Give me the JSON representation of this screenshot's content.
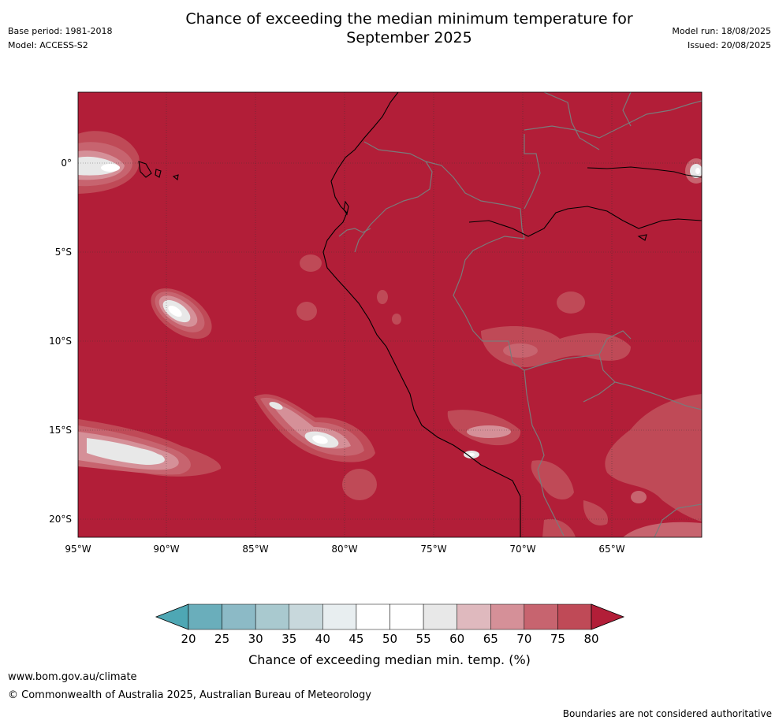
{
  "header": {
    "title_line1": "Chance of exceeding the median minimum temperature for",
    "title_line2": "September 2025",
    "base_period": "Base period: 1981-2018",
    "model": "Model: ACCESS-S2",
    "model_run": "Model run: 18/08/2025",
    "issued": "Issued: 20/08/2025"
  },
  "map": {
    "lon_labels": [
      "95°W",
      "90°W",
      "85°W",
      "80°W",
      "75°W",
      "70°W",
      "65°W"
    ],
    "lat_labels": [
      "0°",
      "5°S",
      "10°S",
      "15°S",
      "20°S"
    ],
    "background_color": "#b21e38",
    "land_border_color": "#7a7a7a",
    "coastline_color": "#000000"
  },
  "colorbar": {
    "label": "Chance of exceeding median min. temp. (%)",
    "ticks": [
      "20",
      "25",
      "30",
      "35",
      "40",
      "45",
      "50",
      "55",
      "60",
      "65",
      "70",
      "75",
      "80"
    ],
    "colors": [
      "#6aaebb",
      "#8cbac6",
      "#a9c9cf",
      "#c8d8dc",
      "#e8eef0",
      "#ffffff",
      "#ffffff",
      "#e8e8e8",
      "#dfb9be",
      "#d59098",
      "#c7646f",
      "#bf4a57"
    ],
    "under_color": "#4ea7b4",
    "over_color": "#b21e38"
  },
  "footer": {
    "url": "www.bom.gov.au/climate",
    "copyright": "© Commonwealth of Australia 2025, Australian Bureau of Meteorology",
    "disclaimer": "Boundaries are not considered authoritative"
  }
}
